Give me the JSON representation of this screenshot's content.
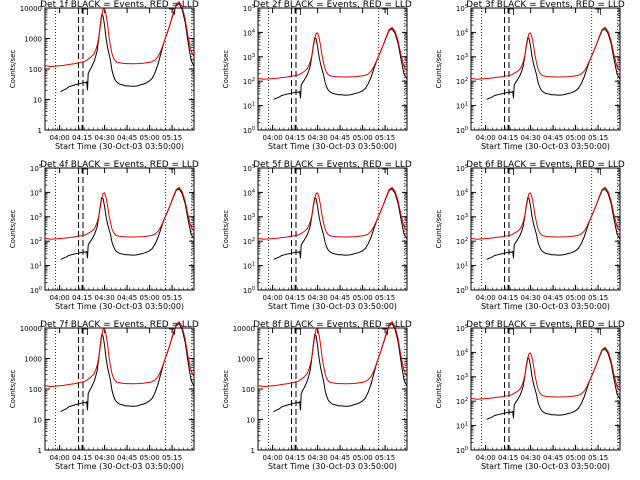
{
  "chart_data": [
    {
      "title": "Det 1f BLACK = Events, RED = LLD",
      "type": "line",
      "xlabel": "Start Time (30-Oct-03 03:50:00)",
      "ylabel": "Counts/sec",
      "yscale": "log",
      "ylim": [
        1,
        10000
      ],
      "ytick_labels": [
        "1",
        "10",
        "100",
        "1000",
        "10000"
      ],
      "xlim": [
        0,
        1.0
      ]
    },
    {
      "title": "Det 2f BLACK = Events, RED = LLD",
      "type": "line",
      "xlabel": "Start Time (30-Oct-03 03:50:00)",
      "ylabel": "Counts/sec",
      "yscale": "log",
      "ylim": [
        1,
        100000
      ],
      "ytick_labels": [
        "10^0",
        "10^1",
        "10^2",
        "10^3",
        "10^4",
        "10^5"
      ],
      "xlim": [
        0,
        1.0
      ]
    },
    {
      "title": "Det 3f BLACK = Events, RED = LLD",
      "type": "line",
      "xlabel": "Start Time (30-Oct-03 03:50:00)",
      "ylabel": "Counts/sec",
      "yscale": "log",
      "ylim": [
        1,
        100000
      ],
      "ytick_labels": [
        "10^0",
        "10^1",
        "10^2",
        "10^3",
        "10^4",
        "10^5"
      ],
      "xlim": [
        0,
        1.0
      ]
    },
    {
      "title": "Det 4f BLACK = Events, RED = LLD",
      "type": "line",
      "xlabel": "Start Time (30-Oct-03 03:50:00)",
      "ylabel": "Counts/sec",
      "yscale": "log",
      "ylim": [
        1,
        100000
      ],
      "ytick_labels": [
        "10^0",
        "10^1",
        "10^2",
        "10^3",
        "10^4",
        "10^5"
      ],
      "xlim": [
        0,
        1.0
      ]
    },
    {
      "title": "Det 5f BLACK = Events, RED = LLD",
      "type": "line",
      "xlabel": "Start Time (30-Oct-03 03:50:00)",
      "ylabel": "Counts/sec",
      "yscale": "log",
      "ylim": [
        1,
        100000
      ],
      "ytick_labels": [
        "10^0",
        "10^1",
        "10^2",
        "10^3",
        "10^4",
        "10^5"
      ],
      "xlim": [
        0,
        1.0
      ]
    },
    {
      "title": "Det 6f BLACK = Events, RED = LLD",
      "type": "line",
      "xlabel": "Start Time (30-Oct-03 03:50:00)",
      "ylabel": "Counts/sec",
      "yscale": "log",
      "ylim": [
        1,
        100000
      ],
      "ytick_labels": [
        "10^0",
        "10^1",
        "10^2",
        "10^3",
        "10^4",
        "10^5"
      ],
      "xlim": [
        0,
        1.0
      ]
    },
    {
      "title": "Det 7f BLACK = Events, RED = LLD",
      "type": "line",
      "xlabel": "Start Time (30-Oct-03 03:50:00)",
      "ylabel": "Counts/sec",
      "yscale": "log",
      "ylim": [
        1,
        10000
      ],
      "ytick_labels": [
        "1",
        "10",
        "100",
        "1000",
        "10000"
      ],
      "xlim": [
        0,
        1.0
      ]
    },
    {
      "title": "Det 8f BLACK = Events, RED = LLD",
      "type": "line",
      "xlabel": "Start Time (30-Oct-03 03:50:00)",
      "ylabel": "Counts/sec",
      "yscale": "log",
      "ylim": [
        1,
        10000
      ],
      "ytick_labels": [
        "1",
        "10",
        "100",
        "1000",
        "10000"
      ],
      "xlim": [
        0,
        1.0
      ]
    },
    {
      "title": "Det 9f BLACK = Events, RED = LLD",
      "type": "line",
      "xlabel": "Start Time (30-Oct-03 03:50:00)",
      "ylabel": "Counts/sec",
      "yscale": "log",
      "ylim": [
        1,
        100000
      ],
      "ytick_labels": [
        "10^0",
        "10^1",
        "10^2",
        "10^3",
        "10^4",
        "10^5"
      ],
      "xlim": [
        0,
        1.0
      ]
    }
  ],
  "common": {
    "x_tick_labels": [
      "04:00",
      "04:15",
      "04:30",
      "04:45",
      "05:00",
      "05:15"
    ],
    "x_tick_fractions": [
      0.098,
      0.249,
      0.4,
      0.551,
      0.702,
      0.853
    ],
    "dotted_lines_x": [
      0.07,
      0.81,
      0.985
    ],
    "dashed_lines_x": [
      0.225,
      0.255
    ],
    "colors": {
      "events": "#000000",
      "lld": "#e00000",
      "axes": "#000000"
    },
    "series": [
      {
        "name": "Events",
        "color": "#000000",
        "x": [
          0.105,
          0.12,
          0.14,
          0.16,
          0.18,
          0.2,
          0.22,
          0.24,
          0.26,
          0.27,
          0.28,
          0.285,
          0.29,
          0.3,
          0.31,
          0.32,
          0.33,
          0.34,
          0.35,
          0.36,
          0.37,
          0.38,
          0.39,
          0.4,
          0.41,
          0.42,
          0.43,
          0.44,
          0.45,
          0.46,
          0.47,
          0.48,
          0.5,
          0.52,
          0.54,
          0.56,
          0.58,
          0.6,
          0.62,
          0.64,
          0.66,
          0.68,
          0.7,
          0.72,
          0.74,
          0.76,
          0.78,
          0.8,
          0.82,
          0.84,
          0.86,
          0.88,
          0.9,
          0.92,
          0.94,
          0.96,
          0.98,
          1.0
        ],
        "y": [
          18,
          20,
          22,
          26,
          28,
          30,
          32,
          34,
          36,
          35,
          38,
          20,
          70,
          90,
          110,
          140,
          180,
          260,
          400,
          900,
          2500,
          6000,
          5500,
          2600,
          1000,
          500,
          300,
          180,
          90,
          60,
          45,
          38,
          32,
          30,
          28,
          28,
          27,
          27,
          28,
          30,
          32,
          35,
          40,
          50,
          80,
          150,
          350,
          800,
          1500,
          3000,
          6000,
          12000,
          14000,
          9000,
          3500,
          800,
          200,
          120
        ]
      },
      {
        "name": "LLD",
        "color": "#e00000",
        "x": [
          0.0,
          0.04,
          0.08,
          0.12,
          0.16,
          0.2,
          0.24,
          0.27,
          0.29,
          0.31,
          0.33,
          0.34,
          0.35,
          0.36,
          0.37,
          0.38,
          0.39,
          0.4,
          0.41,
          0.42,
          0.43,
          0.44,
          0.45,
          0.46,
          0.47,
          0.48,
          0.5,
          0.52,
          0.54,
          0.56,
          0.58,
          0.6,
          0.62,
          0.64,
          0.66,
          0.68,
          0.7,
          0.72,
          0.74,
          0.76,
          0.78,
          0.8,
          0.82,
          0.84,
          0.86,
          0.88,
          0.9,
          0.92,
          0.94,
          0.96,
          0.98,
          1.0
        ],
        "y": [
          130,
          120,
          125,
          130,
          140,
          150,
          165,
          180,
          210,
          250,
          320,
          420,
          600,
          1000,
          2200,
          5000,
          9000,
          9500,
          6000,
          2800,
          1100,
          550,
          320,
          230,
          190,
          170,
          160,
          155,
          150,
          150,
          148,
          148,
          150,
          152,
          155,
          160,
          165,
          175,
          200,
          260,
          420,
          800,
          1500,
          3000,
          6500,
          13000,
          16000,
          11000,
          4500,
          1200,
          400,
          250
        ]
      }
    ]
  }
}
